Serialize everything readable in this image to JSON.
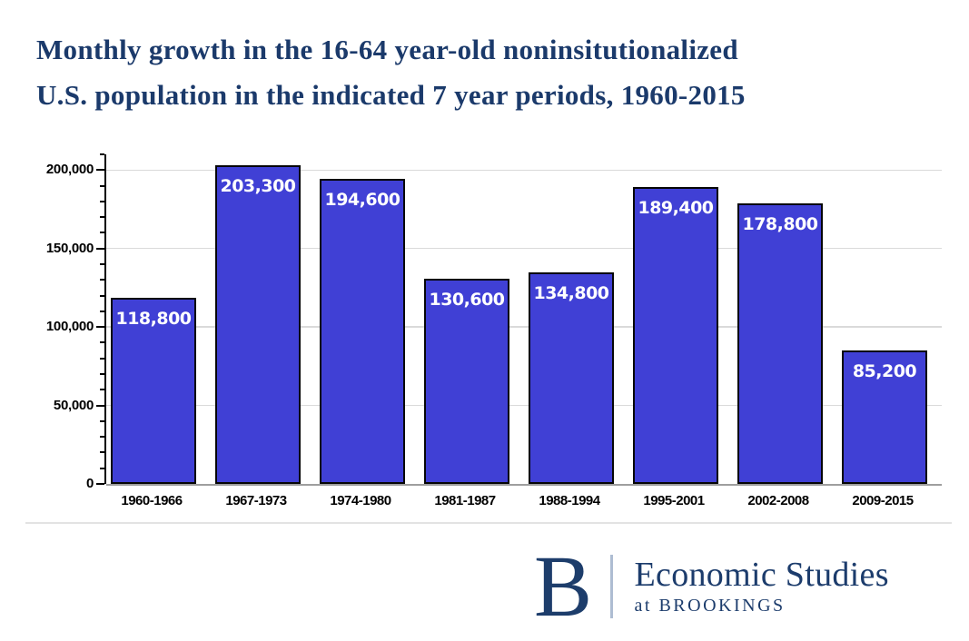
{
  "title_display": {
    "line1": "Monthly growth in the 16-64 year-old noninsitutionalized",
    "line2": "U.S. population in the indicated 7 year periods, 1960-2015"
  },
  "chart_data": {
    "type": "bar",
    "title": "Monthly growth in the 16-64 year-old noninsitutionalized U.S. population in the indicated 7 year periods, 1960-2015",
    "categories": [
      "1960-1966",
      "1967-1973",
      "1974-1980",
      "1981-1987",
      "1988-1994",
      "1995-2001",
      "2002-2008",
      "2009-2015"
    ],
    "values": [
      118800,
      203300,
      194600,
      130600,
      134800,
      189400,
      178800,
      85200
    ],
    "value_labels": [
      "118,800",
      "203,300",
      "194,600",
      "130,600",
      "134,800",
      "189,400",
      "178,800",
      "85,200"
    ],
    "xlabel": "",
    "ylabel": "",
    "ylim": [
      0,
      210000
    ],
    "yticks": [
      0,
      50000,
      100000,
      150000,
      200000
    ],
    "ytick_labels": [
      "0",
      "50,000",
      "100,000",
      "150,000",
      "200,000"
    ],
    "minor_tick_step": 10000,
    "grid": true,
    "legend": false,
    "bar_color": "#4040D5",
    "bar_border_color": "#060606",
    "data_label_color": "#FFFFFF"
  },
  "footer": {
    "logo_letter": "B",
    "title": "Economic Studies",
    "subtitle": "at BROOKINGS"
  },
  "colors": {
    "title_navy": "#1B3A6B",
    "footer_navy": "#1C3C6C",
    "gridline": "#DADADA",
    "axis": "#000000",
    "page_divider": "#E3E3E3",
    "logo_divider": "#AEBDD2"
  }
}
